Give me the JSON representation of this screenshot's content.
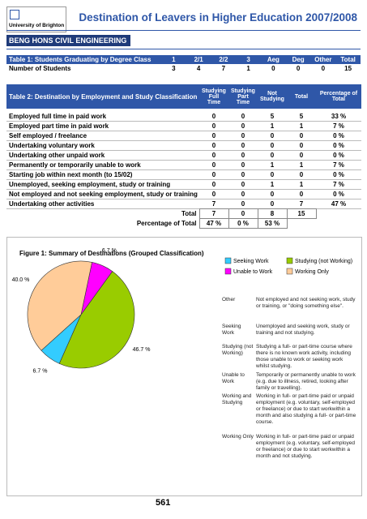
{
  "header": {
    "logo_text": "University of Brighton",
    "title": "Destination of Leavers in Higher Education 2007/2008"
  },
  "course": "BENG HONS CIVIL ENGINEERING",
  "table1": {
    "title": "Table 1: Students Graduating by Degree Class",
    "columns": [
      "1",
      "2/1",
      "2/2",
      "3",
      "Aeg",
      "Deg",
      "Other",
      "Total"
    ],
    "row_label": "Number of Students",
    "values": [
      3,
      4,
      7,
      1,
      0,
      0,
      0,
      15
    ]
  },
  "table2": {
    "title": "Table 2: Destination by Employment and Study Classification",
    "columns": [
      "Studying Full Time",
      "Studying Part Time",
      "Not Studying",
      "Total",
      "Percentage of Total"
    ],
    "rows": [
      [
        "Employed full time in paid work",
        0,
        0,
        5,
        5,
        "33 %"
      ],
      [
        "Employed part time in paid work",
        0,
        0,
        1,
        1,
        "7 %"
      ],
      [
        "Self employed / freelance",
        0,
        0,
        0,
        0,
        "0 %"
      ],
      [
        "Undertaking voluntary work",
        0,
        0,
        0,
        0,
        "0 %"
      ],
      [
        "Undertaking other unpaid work",
        0,
        0,
        0,
        0,
        "0 %"
      ],
      [
        "Permanently or temporarily unable to work",
        0,
        0,
        1,
        1,
        "7 %"
      ],
      [
        "Starting job within next month (to 15/02)",
        0,
        0,
        0,
        0,
        "0 %"
      ],
      [
        "Unemployed, seeking employment, study or training",
        0,
        0,
        1,
        1,
        "7 %"
      ],
      [
        "Not employed and not seeking employment, study or training",
        0,
        0,
        0,
        0,
        "0 %"
      ],
      [
        "Undertaking other activities",
        7,
        0,
        0,
        7,
        "47 %"
      ]
    ],
    "total": {
      "label": "Total",
      "values": [
        7,
        0,
        8,
        15
      ]
    },
    "percentage": {
      "label": "Percentage of Total",
      "values": [
        "47 %",
        "0 %",
        "53 %"
      ]
    }
  },
  "figure_caption": "Figure 1: Summary of Destinations (Grouped Classification)",
  "chart_data": {
    "type": "pie",
    "categories": [
      "Seeking Work",
      "Studying (not Working)",
      "Unable to Work",
      "Working Only"
    ],
    "values": [
      6.7,
      46.7,
      6.7,
      40.0
    ],
    "value_labels": [
      "6.7 %",
      "46.7 %",
      "6.7 %",
      "40.0 %"
    ],
    "colors": [
      "#33ccff",
      "#99cc00",
      "#ff00ff",
      "#ffcc99"
    ]
  },
  "definitions": [
    {
      "term": "Other",
      "text": "Not employed and not seeking work, study or training, or \"doing something else\"."
    },
    {
      "term": "Seeking Work",
      "text": "Unemployed and seeking work, study or training and not studying."
    },
    {
      "term": "Studying (not Working)",
      "text": "Studying a full- or part-time course where there is no known work activity, including those unable to work or seeking work whilst studying."
    },
    {
      "term": "Unable to Work",
      "text": "Temporarily or permanently unable to work (e.g. due to illness, retired, looking after family or travelling)."
    },
    {
      "term": "Working and Studying",
      "text": "Working in full- or part-time paid or unpaid employment (e.g. voluntary, self-employed or freelance) or due to start workwithin a month and also studying a full- or part-time course."
    },
    {
      "term": "Working Only",
      "text": "Working in full- or part-time paid or unpaid employment (e.g. voluntary, self-employed or freelance) or due to start workwithin a month and not studying."
    }
  ],
  "page_number": "561"
}
